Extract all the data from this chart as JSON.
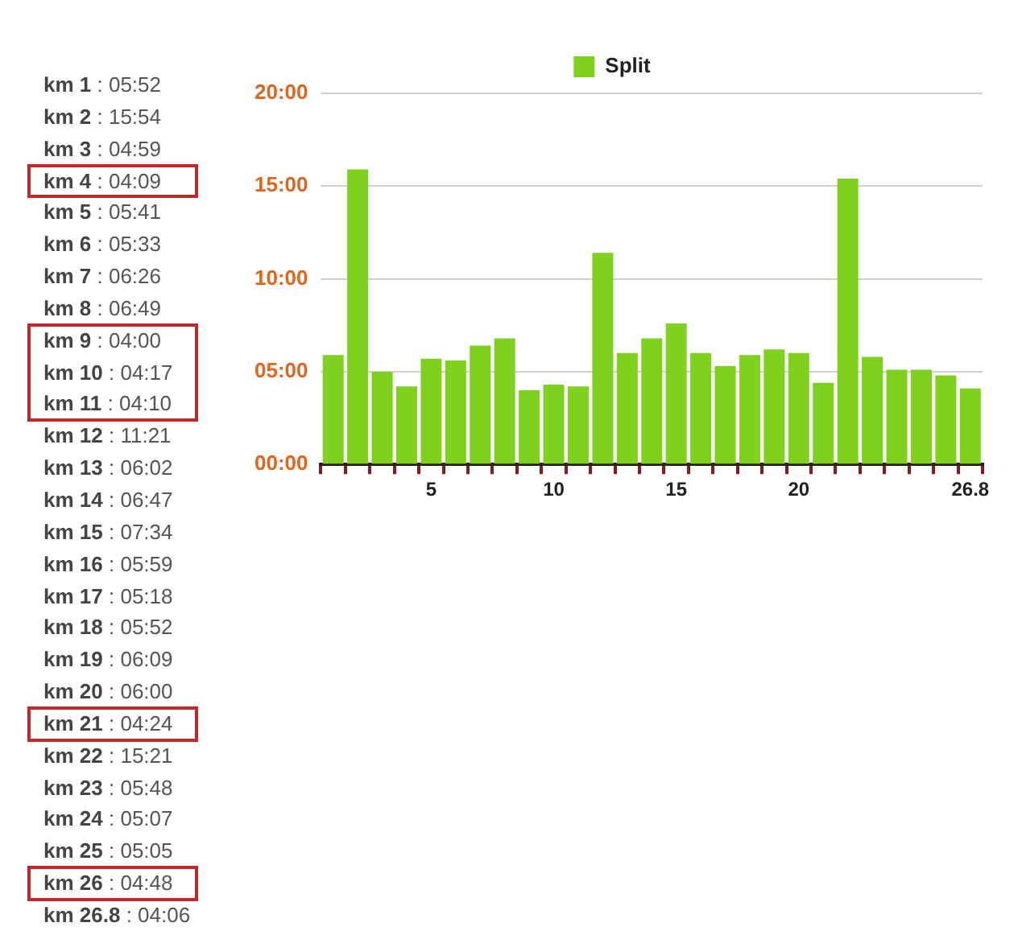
{
  "chart_data": {
    "type": "bar",
    "categories": [
      null,
      null,
      null,
      null,
      "5",
      null,
      null,
      null,
      null,
      "10",
      null,
      null,
      null,
      null,
      "15",
      null,
      null,
      null,
      null,
      "20",
      null,
      null,
      null,
      null,
      null,
      null,
      "26.8"
    ],
    "series": [
      {
        "name": "Split",
        "color": "#7ed11e",
        "values": [
          5.9,
          15.9,
          5.0,
          4.2,
          5.7,
          5.6,
          6.4,
          6.8,
          4.0,
          4.3,
          4.2,
          11.4,
          6.0,
          6.8,
          7.6,
          6.0,
          5.3,
          5.9,
          6.2,
          6.0,
          4.4,
          15.4,
          5.8,
          5.1,
          5.1,
          4.8,
          4.1
        ]
      }
    ],
    "annotations": [
      "km 1 : 05:52",
      "km 2 : 15:54",
      "km 3 : 04:59",
      "km 4 : 04:09",
      "km 5 : 05:41",
      "km 6 : 05:33",
      "km 7 : 06:26",
      "km 8 : 06:49",
      "km 9 : 04:00",
      "km 10 : 04:17",
      "km 11 : 04:10",
      "km 12 : 11:21",
      "km 13 : 06:02",
      "km 14 : 06:47",
      "km 15 : 07:34",
      "km 16 : 05:59",
      "km 17 : 05:18",
      "km 18 : 05:52",
      "km 19 : 06:09",
      "km 20 : 06:00",
      "km 21 : 04:24",
      "km 22 : 15:21",
      "km 23 : 05:48",
      "km 24 : 05:07",
      "km 25 : 05:05",
      "km 26 : 04:48",
      "km 26.8 : 04:06"
    ],
    "ylim": [
      0,
      20
    ],
    "yticks": [
      {
        "value": 0,
        "label": "00:00"
      },
      {
        "value": 5,
        "label": "05:00"
      },
      {
        "value": 10,
        "label": "10:00"
      },
      {
        "value": 15,
        "label": "15:00"
      },
      {
        "value": 20,
        "label": "20:00"
      }
    ],
    "grid": "y",
    "legend": "top"
  }
}
